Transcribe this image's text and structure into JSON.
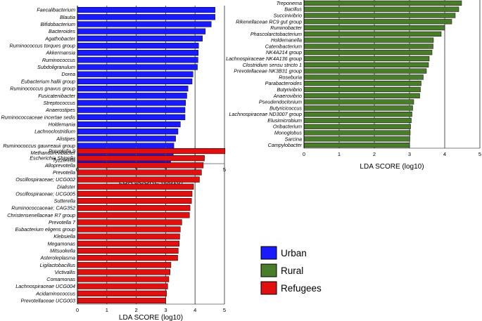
{
  "colors": {
    "urban": "#1a1aff",
    "rural": "#4a7d2a",
    "refugees": "#e01010",
    "grid": "#555555",
    "axis": "#000000"
  },
  "legend": [
    {
      "label": "Urban",
      "color": "#1a1aff"
    },
    {
      "label": "Rural",
      "color": "#4a7d2a"
    },
    {
      "label": "Refugees",
      "color": "#e01010"
    }
  ],
  "chart_data": [
    {
      "type": "bar",
      "orientation": "horizontal",
      "group": "Urban",
      "xlabel": "LDA SCORE (log10)",
      "xlim": [
        0,
        5
      ],
      "xticks": [
        0,
        1,
        2,
        3,
        4,
        5
      ],
      "grid": true,
      "categories": [
        "Faecalibacterium",
        "Blautia",
        "Bifidobacterium",
        "Bacteroides",
        "Agathobacter",
        "Ruminococcus torques group",
        "Akkermansia",
        "Ruminococcus",
        "Subdoligranulum",
        "Dorea",
        "Eubacterium hallii group",
        "Ruminococcus gnavus group",
        "Fusicatenibacter",
        "Streptococcus",
        "Anaerostipes",
        "Ruminococcaceae incertae sedis",
        "Holdemania",
        "Lachnoclostridium",
        "Alistipes",
        "Ruminococcus gauvreauii group",
        "Methanobrevibacter",
        "Tyzzerella"
      ],
      "values": [
        4.68,
        4.68,
        4.55,
        4.35,
        4.25,
        4.12,
        4.11,
        4.1,
        4.08,
        3.93,
        3.9,
        3.76,
        3.72,
        3.68,
        3.66,
        3.66,
        3.5,
        3.42,
        3.34,
        3.28,
        3.26,
        3.17
      ]
    },
    {
      "type": "bar",
      "orientation": "horizontal",
      "group": "Rural",
      "xlabel": "LDA SCORE (log10)",
      "xlim": [
        0,
        5
      ],
      "xticks": [
        0,
        1,
        2,
        3,
        4,
        5
      ],
      "grid": true,
      "categories": [
        "Treponema",
        "Bacillus",
        "Succinivibrio",
        "Rikenellaceae RC9 gut group",
        "Ruminobacter",
        "Phascolarctobacterium",
        "Holdemanella",
        "Catenibacterium",
        "NK4A214 group",
        "Lachnospiraceae NK4A136 group",
        "Clostridium sensu stricto 1",
        "Prevotellaceae NK3B31 group",
        "Roseburia",
        "Parabacteroides",
        "Butyrivibrio",
        "Anaerovibrio",
        "Pseudendoclonium",
        "Butyricicoccus",
        "Lachnospiraceae ND3007 group",
        "Elusimicrobium",
        "Oribacterium",
        "Monoglobus",
        "Sarcina",
        "Campylobacter"
      ],
      "values": [
        4.48,
        4.4,
        4.3,
        4.2,
        4.0,
        3.9,
        3.68,
        3.67,
        3.64,
        3.56,
        3.54,
        3.48,
        3.39,
        3.33,
        3.31,
        3.29,
        3.12,
        3.09,
        3.07,
        3.05,
        3.03,
        3.02,
        3.01,
        3.0
      ]
    },
    {
      "type": "bar",
      "orientation": "horizontal",
      "group": "Refugees",
      "xlabel": "LDA SCORE (log10)",
      "xlim": [
        0,
        5
      ],
      "xticks": [
        0,
        1,
        2,
        3,
        4,
        5
      ],
      "grid": true,
      "categories": [
        "Prevotella 9",
        "Escherichia Shigella",
        "Alloprevotella",
        "Prevotella",
        "Oscillospiraceae; UCG002",
        "Dialister",
        "Oscillospiraceae; UCG005",
        "Sutterella",
        "Ruminococcaceae; CAG352",
        "Christensenellaceae R7 group",
        "Prevotella 7",
        "Eubacterium eligens group",
        "Klebsiella",
        "Megamonas",
        "Mitsuokella",
        "Asteroleplasma",
        "Ligilactobacillus",
        "Victivallis",
        "Comamonas",
        "Lachnospiraceae UCG004",
        "Acidaminococcus",
        "Prevotellaceae UCG003"
      ],
      "values": [
        5.02,
        4.32,
        4.28,
        4.22,
        4.15,
        3.95,
        3.9,
        3.88,
        3.83,
        3.81,
        3.55,
        3.5,
        3.48,
        3.46,
        3.43,
        3.41,
        3.18,
        3.15,
        3.11,
        3.07,
        3.03,
        3.0
      ]
    }
  ]
}
